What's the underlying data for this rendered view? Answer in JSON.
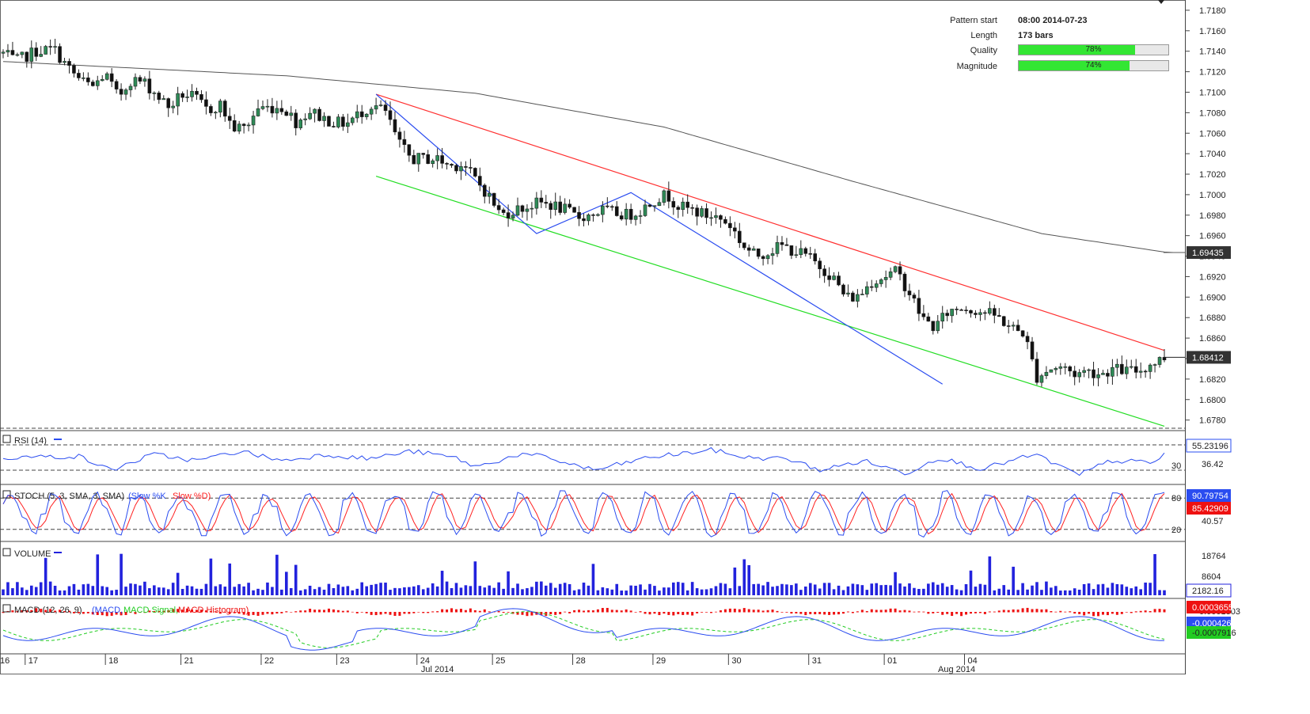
{
  "pattern_info": {
    "pattern_start_label": "Pattern start",
    "pattern_start_value": "08:00 2014-07-23",
    "length_label": "Length",
    "length_value": "173 bars",
    "quality_label": "Quality",
    "quality_pct_text": "78%",
    "quality_value": 0.78,
    "magnitude_label": "Magnitude",
    "magnitude_pct_text": "74%",
    "magnitude_value": 0.74
  },
  "colors": {
    "up_candle": "#2e8b57",
    "down_candle": "#111111",
    "resistance": "#ff3030",
    "support": "#22dd22",
    "zigzag": "#2a4cf0",
    "ma": "#555555",
    "rsi": "#2a4cf0",
    "stoch_k": "#2a4cf0",
    "stoch_d": "#ff2020",
    "volume": "#2222dd",
    "macd": "#2a4cf0",
    "macd_signal": "#22cc22",
    "macd_hist": "#ee1111",
    "tag_dark": "#333333",
    "tag_red": "#ee1111",
    "tag_green": "#22cc22",
    "tag_blue": "#2a4cf0"
  },
  "chart_data": [
    {
      "type": "candlestick",
      "title": "",
      "ylim": [
        1.6772,
        1.719
      ],
      "y_ticks": [
        "1.7180",
        "1.7160",
        "1.7140",
        "1.7120",
        "1.7100",
        "1.7080",
        "1.7060",
        "1.7040",
        "1.7020",
        "1.7000",
        "1.6980",
        "1.6960",
        "1.6940",
        "1.6920",
        "1.6900",
        "1.6880",
        "1.6860",
        "1.6840",
        "1.6820",
        "1.6800",
        "1.6780"
      ],
      "bars_visible": 247,
      "price_anchors": [
        [
          0,
          1.7138
        ],
        [
          4,
          1.713
        ],
        [
          10,
          1.714
        ],
        [
          16,
          1.7142
        ],
        [
          20,
          1.7125
        ],
        [
          24,
          1.7112
        ],
        [
          28,
          1.7105
        ],
        [
          32,
          1.7118
        ],
        [
          36,
          1.7095
        ],
        [
          40,
          1.7112
        ],
        [
          44,
          1.711
        ],
        [
          48,
          1.7098
        ],
        [
          52,
          1.7085
        ],
        [
          56,
          1.7098
        ],
        [
          60,
          1.7095
        ],
        [
          64,
          1.7082
        ],
        [
          68,
          1.7088
        ],
        [
          72,
          1.7065
        ],
        [
          76,
          1.7065
        ],
        [
          80,
          1.7085
        ],
        [
          84,
          1.7085
        ],
        [
          88,
          1.7085
        ],
        [
          92,
          1.707
        ],
        [
          96,
          1.7082
        ],
        [
          100,
          1.7075
        ],
        [
          104,
          1.707
        ],
        [
          108,
          1.707
        ],
        [
          112,
          1.708
        ],
        [
          116,
          1.7088
        ],
        [
          120,
          1.708
        ],
        [
          124,
          1.705
        ],
        [
          128,
          1.7035
        ],
        [
          132,
          1.7035
        ],
        [
          136,
          1.7035
        ],
        [
          140,
          1.7028
        ],
        [
          144,
          1.703
        ],
        [
          148,
          1.7015
        ],
        [
          152,
          1.7
        ],
        [
          156,
          1.698
        ],
        [
          160,
          1.6985
        ],
        [
          164,
          1.6988
        ],
        [
          168,
          1.6992
        ],
        [
          172,
          1.699
        ],
        [
          176,
          1.6985
        ],
        [
          180,
          1.6978
        ],
        [
          184,
          1.698
        ],
        [
          188,
          1.6985
        ],
        [
          192,
          1.6982
        ],
        [
          196,
          1.698
        ],
        [
          200,
          1.6985
        ],
        [
          204,
          1.6995
        ],
        [
          208,
          1.7
        ],
        [
          212,
          1.6988
        ],
        [
          216,
          1.6985
        ],
        [
          220,
          1.698
        ],
        [
          224,
          1.6978
        ],
        [
          228,
          1.697
        ],
        [
          232,
          1.695
        ],
        [
          236,
          1.694
        ],
        [
          240,
          1.6945
        ],
        [
          244,
          1.695
        ],
        [
          248,
          1.6945
        ],
        [
          252,
          1.694
        ],
        [
          256,
          1.693
        ],
        [
          260,
          1.692
        ],
        [
          264,
          1.69
        ],
        [
          268,
          1.69
        ],
        [
          272,
          1.6915
        ],
        [
          276,
          1.692
        ],
        [
          280,
          1.6925
        ],
        [
          284,
          1.6905
        ],
        [
          288,
          1.688
        ],
        [
          292,
          1.687
        ],
        [
          296,
          1.6885
        ],
        [
          300,
          1.689
        ],
        [
          304,
          1.6888
        ],
        [
          308,
          1.6885
        ],
        [
          312,
          1.688
        ],
        [
          316,
          1.687
        ],
        [
          320,
          1.6865
        ],
        [
          324,
          1.6822
        ],
        [
          328,
          1.683
        ],
        [
          332,
          1.6832
        ],
        [
          336,
          1.6825
        ],
        [
          340,
          1.6828
        ],
        [
          344,
          1.6825
        ],
        [
          348,
          1.683
        ],
        [
          352,
          1.6828
        ],
        [
          356,
          1.6828
        ],
        [
          360,
          1.6835
        ],
        [
          364,
          1.6841
        ]
      ],
      "current_price": "1.68412",
      "ma_last": "1.69435",
      "ma_anchors": [
        [
          0,
          1.713
        ],
        [
          60,
          1.7116
        ],
        [
          100,
          1.7099
        ],
        [
          140,
          1.7066
        ],
        [
          180,
          1.7013
        ],
        [
          220,
          1.6962
        ],
        [
          246,
          1.6944
        ]
      ],
      "resistance_line": {
        "bar_from": 79,
        "price_from": 1.7098,
        "bar_to": 246,
        "price_to": 1.6848
      },
      "support_line": {
        "bar_from": 79,
        "price_from": 1.7018,
        "bar_to": 246,
        "price_to": 1.6774
      },
      "zigzag": [
        [
          79,
          1.7098
        ],
        [
          113,
          1.6962
        ],
        [
          133,
          1.7002
        ],
        [
          199,
          1.6815
        ]
      ]
    },
    {
      "type": "line",
      "panel": "rsi",
      "label": "RSI (14)",
      "ylim": [
        10,
        90
      ],
      "levels": [
        30,
        70
      ],
      "tick_labels": [
        "30",
        "36.42"
      ],
      "last_value": "55.23196",
      "anchors": [
        [
          0,
          50
        ],
        [
          14,
          52
        ],
        [
          20,
          30
        ],
        [
          28,
          55
        ],
        [
          36,
          45
        ],
        [
          44,
          60
        ],
        [
          52,
          45
        ],
        [
          60,
          55
        ],
        [
          68,
          48
        ],
        [
          76,
          60
        ],
        [
          84,
          50
        ],
        [
          88,
          35
        ],
        [
          96,
          55
        ],
        [
          100,
          52
        ],
        [
          110,
          30
        ],
        [
          120,
          50
        ],
        [
          132,
          62
        ],
        [
          138,
          50
        ],
        [
          146,
          48
        ],
        [
          152,
          30
        ],
        [
          160,
          45
        ],
        [
          168,
          25
        ],
        [
          174,
          50
        ],
        [
          182,
          32
        ],
        [
          192,
          55
        ],
        [
          200,
          22
        ],
        [
          206,
          45
        ],
        [
          214,
          42
        ],
        [
          216,
          55
        ]
      ]
    },
    {
      "type": "line",
      "panel": "stoch",
      "label": "STOCH (5, 3, SMA, 3, SMA)",
      "series": [
        {
          "name": "Slow %K"
        },
        {
          "name": "Slow %D"
        }
      ],
      "ylim": [
        0,
        100
      ],
      "levels": [
        20,
        80
      ],
      "tick_labels": [
        "80",
        "20",
        "40.57"
      ],
      "last_k": "90.79754",
      "last_d": "85.42909",
      "period_bars": 9
    },
    {
      "type": "bar",
      "panel": "volume",
      "label": "VOLUME",
      "tick_labels": [
        "18764",
        "8604"
      ],
      "last_value": "2182.16",
      "ylim": [
        0,
        22000
      ]
    },
    {
      "type": "line",
      "panel": "macd",
      "label": "MACD (12, 26, 9)",
      "series": [
        {
          "name": "MACD"
        },
        {
          "name": "MACD Signal"
        },
        {
          "name": "MACD Histogram"
        }
      ],
      "last_hist": "0.0003655",
      "tag_mid": "-0.0004261",
      "last_signal": "-0.0007916",
      "tag_hidden": "0.0001803"
    },
    {
      "type": "time_axis",
      "day_labels": [
        {
          "text": "16",
          "bar": 0
        },
        {
          "text": "17",
          "bar": 6
        },
        {
          "text": "18",
          "bar": 23
        },
        {
          "text": "21",
          "bar": 39
        },
        {
          "text": "22",
          "bar": 56
        },
        {
          "text": "23",
          "bar": 72
        },
        {
          "text": "24",
          "bar": 89
        },
        {
          "text": "25",
          "bar": 105
        },
        {
          "text": "28",
          "bar": 122
        },
        {
          "text": "29",
          "bar": 139
        },
        {
          "text": "30",
          "bar": 155
        },
        {
          "text": "31",
          "bar": 172
        },
        {
          "text": "01",
          "bar": 188
        },
        {
          "text": "04",
          "bar": 205
        }
      ],
      "month_labels": [
        {
          "text": "Jul 2014",
          "bar": 92
        },
        {
          "text": "Aug 2014",
          "bar": 202
        }
      ]
    }
  ]
}
